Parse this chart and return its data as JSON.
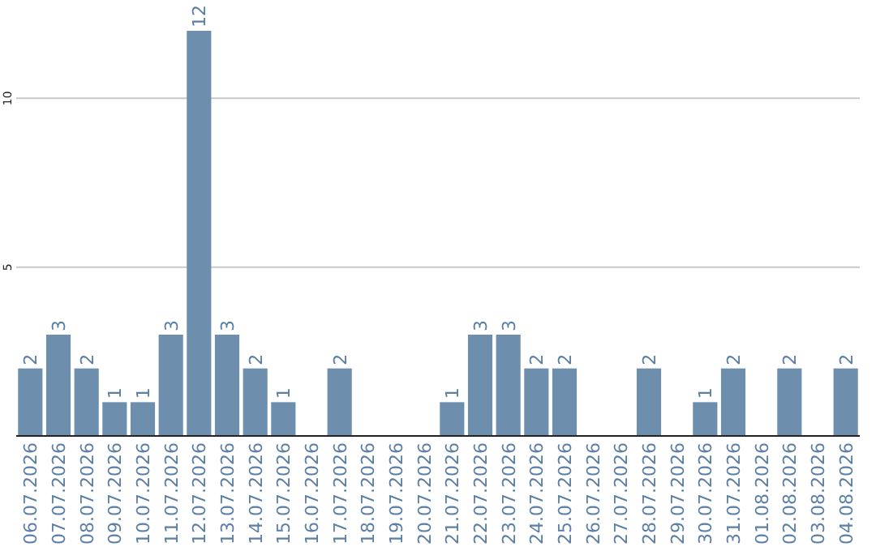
{
  "chart_data": {
    "type": "bar",
    "categories": [
      "06.07.2026",
      "07.07.2026",
      "08.07.2026",
      "09.07.2026",
      "10.07.2026",
      "11.07.2026",
      "12.07.2026",
      "13.07.2026",
      "14.07.2026",
      "15.07.2026",
      "16.07.2026",
      "17.07.2026",
      "18.07.2026",
      "19.07.2026",
      "20.07.2026",
      "21.07.2026",
      "22.07.2026",
      "23.07.2026",
      "24.07.2026",
      "25.07.2026",
      "26.07.2026",
      "27.07.2026",
      "28.07.2026",
      "29.07.2026",
      "30.07.2026",
      "31.07.2026",
      "01.08.2026",
      "02.08.2026",
      "03.08.2026",
      "04.08.2026"
    ],
    "values": [
      2,
      3,
      2,
      1,
      1,
      3,
      12,
      3,
      2,
      1,
      0,
      2,
      0,
      0,
      0,
      1,
      3,
      3,
      2,
      2,
      0,
      0,
      2,
      0,
      1,
      2,
      0,
      2,
      0,
      2
    ],
    "value_labels": [
      "2",
      "3",
      "2",
      "1",
      "1",
      "3",
      "12",
      "3",
      "2",
      "1",
      null,
      "2",
      null,
      null,
      null,
      "1",
      "3",
      "3",
      "2",
      "2",
      null,
      null,
      "2",
      null,
      "1",
      "2",
      null,
      "2",
      null,
      "2"
    ],
    "color": "#6d8fad",
    "ylim": [
      0,
      12
    ],
    "yticks": [
      {
        "value": 0,
        "label": null
      },
      5,
      10
    ],
    "grid": "y"
  }
}
